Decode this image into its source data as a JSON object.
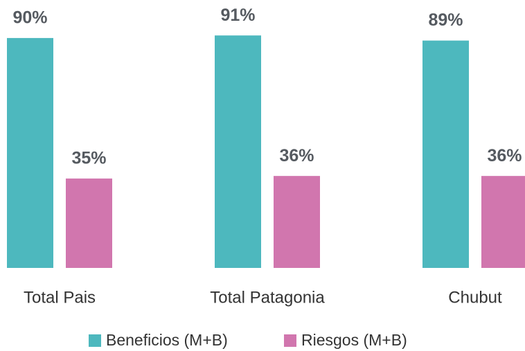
{
  "chart_data": {
    "type": "bar",
    "categories": [
      "Total Pais",
      "Total Patagonia",
      "Chubut"
    ],
    "series": [
      {
        "name": "Beneficios (M+B)",
        "color": "#4db8be",
        "values": [
          90,
          91,
          89
        ],
        "value_labels": [
          "90%",
          "91%",
          "89%"
        ]
      },
      {
        "name": "Riesgos (M+B)",
        "color": "#d176ae",
        "values": [
          35,
          36,
          36
        ],
        "value_labels": [
          "35%",
          "36%",
          "36%"
        ]
      }
    ],
    "ylim": [
      0,
      100
    ]
  }
}
